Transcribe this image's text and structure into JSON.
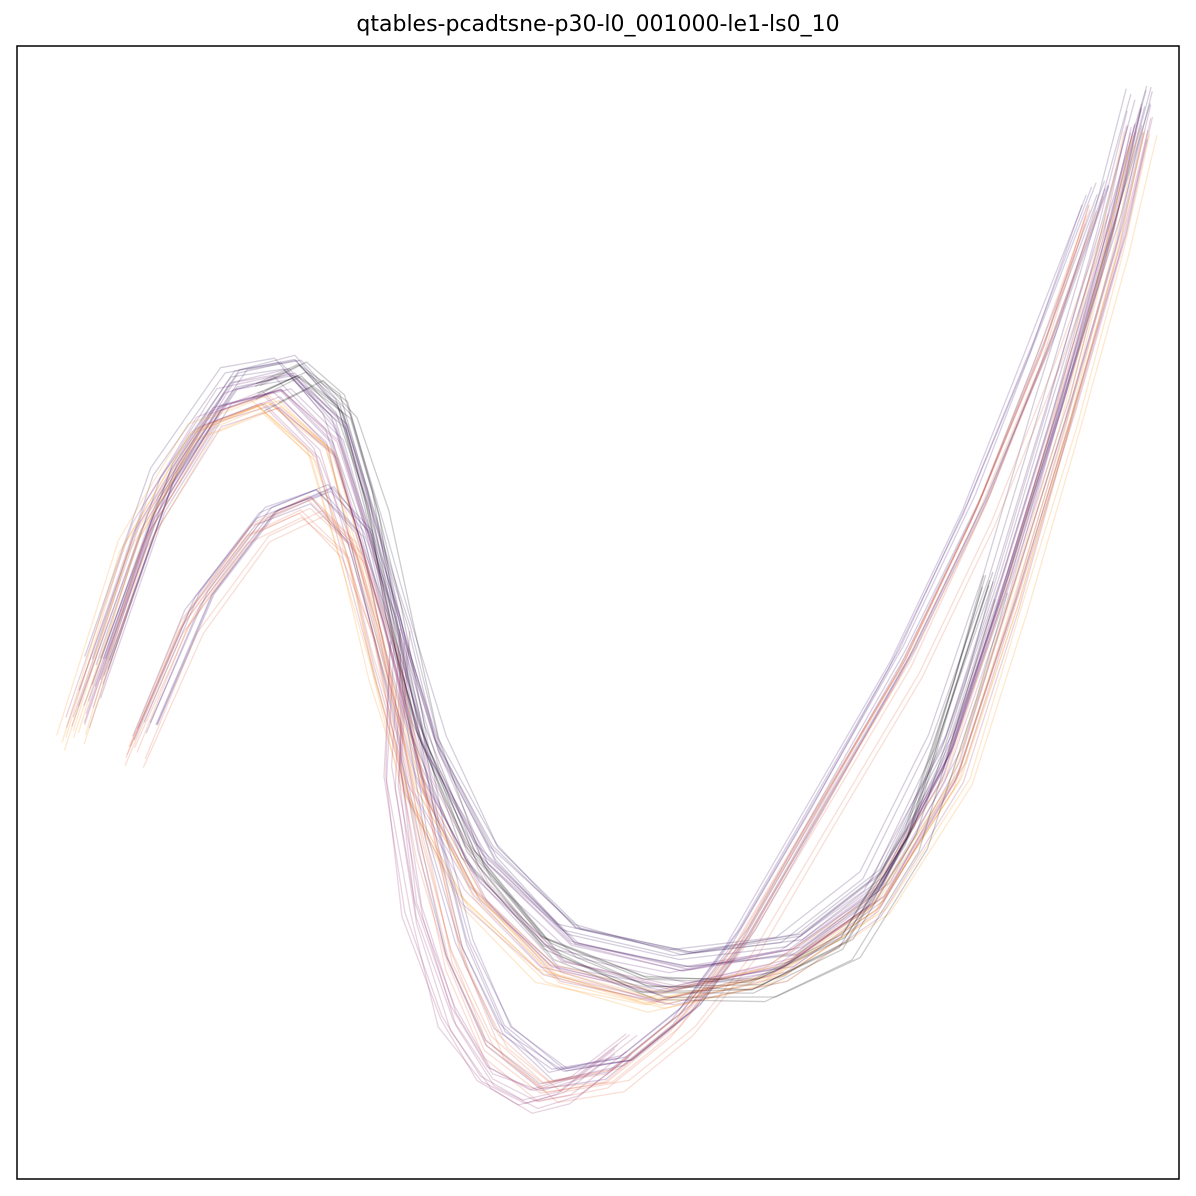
{
  "chart_data": {
    "type": "line",
    "title": "qtables-pcadtsne-p30-l0_001000-le1-ls0_10",
    "xlabel": "",
    "ylabel": "",
    "grid": false,
    "axis_ticks": false,
    "colormap": "inferno",
    "line_alpha": 0.2,
    "trajectories": [
      {
        "id": "arc-top-early",
        "color": "#2b0f54",
        "points": [
          [
            -0.9,
            -0.1
          ],
          [
            -0.78,
            0.25
          ],
          [
            -0.66,
            0.43
          ],
          [
            -0.56,
            0.45
          ],
          [
            -0.47,
            0.35
          ],
          [
            -0.41,
            0.15
          ],
          [
            -0.36,
            -0.05
          ],
          [
            -0.3,
            -0.25
          ],
          [
            -0.2,
            -0.45
          ],
          [
            -0.05,
            -0.6
          ],
          [
            0.15,
            -0.65
          ],
          [
            0.35,
            -0.62
          ],
          [
            0.5,
            -0.5
          ],
          [
            0.62,
            -0.25
          ],
          [
            0.72,
            0.05
          ],
          [
            0.82,
            0.38
          ],
          [
            0.92,
            0.72
          ],
          [
            0.98,
            0.95
          ]
        ]
      },
      {
        "id": "arc-top-mid",
        "color": "#5c126e",
        "points": [
          [
            -0.92,
            -0.15
          ],
          [
            -0.8,
            0.2
          ],
          [
            -0.68,
            0.4
          ],
          [
            -0.57,
            0.43
          ],
          [
            -0.48,
            0.33
          ],
          [
            -0.42,
            0.13
          ],
          [
            -0.37,
            -0.07
          ],
          [
            -0.31,
            -0.28
          ],
          [
            -0.21,
            -0.48
          ],
          [
            -0.06,
            -0.63
          ],
          [
            0.14,
            -0.68
          ],
          [
            0.34,
            -0.64
          ],
          [
            0.5,
            -0.52
          ],
          [
            0.63,
            -0.27
          ],
          [
            0.73,
            0.04
          ],
          [
            0.83,
            0.37
          ],
          [
            0.92,
            0.7
          ],
          [
            0.97,
            0.92
          ]
        ]
      },
      {
        "id": "arc-top-late",
        "color": "#8c2369",
        "points": [
          [
            -0.94,
            -0.2
          ],
          [
            -0.82,
            0.16
          ],
          [
            -0.7,
            0.36
          ],
          [
            -0.59,
            0.4
          ],
          [
            -0.49,
            0.3
          ],
          [
            -0.43,
            0.1
          ],
          [
            -0.38,
            -0.1
          ],
          [
            -0.32,
            -0.32
          ],
          [
            -0.22,
            -0.52
          ],
          [
            -0.08,
            -0.66
          ],
          [
            0.12,
            -0.71
          ],
          [
            0.33,
            -0.66
          ],
          [
            0.5,
            -0.54
          ],
          [
            0.64,
            -0.3
          ],
          [
            0.74,
            0.02
          ],
          [
            0.84,
            0.36
          ],
          [
            0.93,
            0.68
          ],
          [
            0.98,
            0.9
          ]
        ]
      },
      {
        "id": "arc-top-final",
        "color": "#f98e09",
        "points": [
          [
            -0.95,
            -0.24
          ],
          [
            -0.84,
            0.12
          ],
          [
            -0.72,
            0.33
          ],
          [
            -0.6,
            0.38
          ],
          [
            -0.5,
            0.29
          ],
          [
            -0.44,
            0.09
          ],
          [
            -0.39,
            -0.12
          ],
          [
            -0.33,
            -0.34
          ],
          [
            -0.23,
            -0.54
          ],
          [
            -0.09,
            -0.68
          ],
          [
            0.1,
            -0.73
          ],
          [
            0.32,
            -0.68
          ],
          [
            0.5,
            -0.56
          ],
          [
            0.65,
            -0.32
          ],
          [
            0.75,
            0.0
          ],
          [
            0.85,
            0.34
          ],
          [
            0.93,
            0.66
          ],
          [
            0.98,
            0.88
          ]
        ]
      },
      {
        "id": "arc-low-early",
        "color": "#3b0f70",
        "points": [
          [
            -0.82,
            -0.22
          ],
          [
            -0.72,
            0.02
          ],
          [
            -0.6,
            0.18
          ],
          [
            -0.5,
            0.22
          ],
          [
            -0.43,
            0.14
          ],
          [
            -0.38,
            -0.02
          ],
          [
            -0.34,
            -0.2
          ],
          [
            -0.3,
            -0.42
          ],
          [
            -0.25,
            -0.62
          ],
          [
            -0.18,
            -0.78
          ],
          [
            -0.08,
            -0.86
          ],
          [
            0.04,
            -0.84
          ],
          [
            0.16,
            -0.74
          ],
          [
            0.26,
            -0.6
          ],
          [
            0.4,
            -0.35
          ],
          [
            0.55,
            -0.08
          ],
          [
            0.68,
            0.2
          ],
          [
            0.8,
            0.5
          ],
          [
            0.9,
            0.78
          ]
        ]
      },
      {
        "id": "arc-low-late",
        "color": "#e35933",
        "points": [
          [
            -0.84,
            -0.26
          ],
          [
            -0.74,
            -0.02
          ],
          [
            -0.62,
            0.15
          ],
          [
            -0.52,
            0.2
          ],
          [
            -0.44,
            0.12
          ],
          [
            -0.39,
            -0.04
          ],
          [
            -0.35,
            -0.22
          ],
          [
            -0.31,
            -0.44
          ],
          [
            -0.26,
            -0.64
          ],
          [
            -0.19,
            -0.8
          ],
          [
            -0.09,
            -0.88
          ],
          [
            0.03,
            -0.86
          ],
          [
            0.15,
            -0.76
          ],
          [
            0.26,
            -0.62
          ],
          [
            0.41,
            -0.36
          ],
          [
            0.56,
            -0.1
          ],
          [
            0.69,
            0.18
          ],
          [
            0.81,
            0.48
          ],
          [
            0.9,
            0.75
          ]
        ]
      },
      {
        "id": "arc-dense-core",
        "color": "#000004",
        "points": [
          [
            -0.6,
            0.4
          ],
          [
            -0.52,
            0.44
          ],
          [
            -0.45,
            0.38
          ],
          [
            -0.4,
            0.2
          ],
          [
            -0.36,
            0.0
          ],
          [
            -0.31,
            -0.22
          ],
          [
            -0.22,
            -0.45
          ],
          [
            -0.08,
            -0.62
          ],
          [
            0.1,
            -0.7
          ],
          [
            0.3,
            -0.7
          ],
          [
            0.46,
            -0.62
          ],
          [
            0.58,
            -0.42
          ],
          [
            0.66,
            -0.15
          ],
          [
            0.72,
            0.05
          ]
        ]
      },
      {
        "id": "arc-stray",
        "color": "#8c2369",
        "points": [
          [
            -0.36,
            -0.05
          ],
          [
            -0.37,
            -0.3
          ],
          [
            -0.33,
            -0.55
          ],
          [
            -0.27,
            -0.75
          ],
          [
            -0.2,
            -0.86
          ],
          [
            -0.12,
            -0.9
          ],
          [
            -0.05,
            -0.88
          ],
          [
            0.05,
            -0.8
          ]
        ]
      }
    ]
  }
}
